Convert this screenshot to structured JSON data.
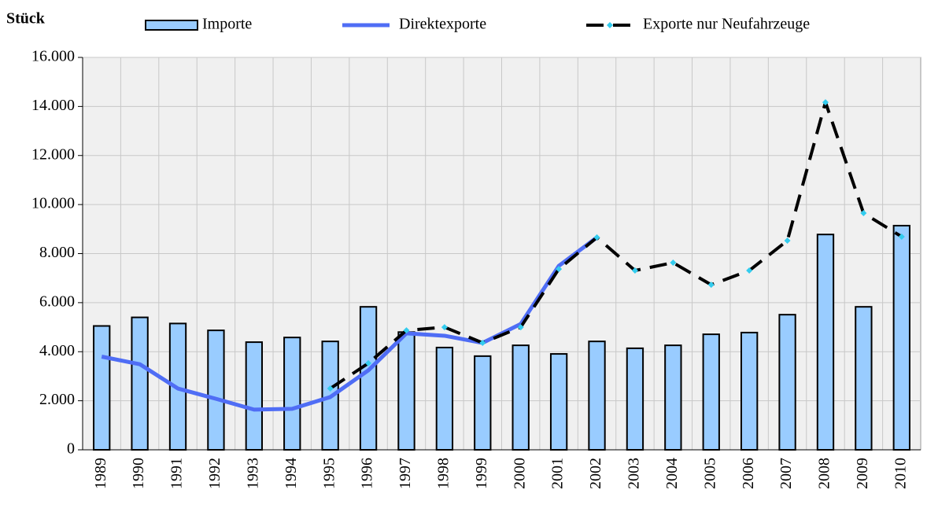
{
  "chart_data": {
    "type": "bar_line",
    "y_label": "Stück",
    "categories": [
      "1989",
      "1990",
      "1991",
      "1992",
      "1993",
      "1994",
      "1995",
      "1996",
      "1997",
      "1998",
      "1999",
      "2000",
      "2001",
      "2002",
      "2003",
      "2004",
      "2005",
      "2006",
      "2007",
      "2008",
      "2009",
      "2010"
    ],
    "series": [
      {
        "name": "Importe",
        "type": "bar",
        "color": "#99ccff",
        "values": [
          5050,
          5400,
          5150,
          4870,
          4390,
          4580,
          4420,
          5830,
          4800,
          4170,
          3820,
          4260,
          3910,
          4420,
          4140,
          4260,
          4710,
          4780,
          5510,
          8780,
          5830,
          9140
        ]
      },
      {
        "name": "Direktexporte",
        "type": "line",
        "color": "#4f6df5",
        "values": [
          3800,
          3490,
          2500,
          2080,
          1640,
          1670,
          2150,
          3240,
          4750,
          4650,
          4360,
          5130,
          7500,
          8660,
          null,
          null,
          null,
          null,
          null,
          null,
          null,
          null
        ]
      },
      {
        "name": "Exporte nur Neufahrzeuge",
        "type": "dashed",
        "color": "#000000",
        "marker_color": "#33ccee",
        "values": [
          null,
          null,
          null,
          null,
          null,
          null,
          2500,
          3530,
          4870,
          5000,
          4360,
          5000,
          7370,
          8660,
          7310,
          7630,
          6730,
          7310,
          8530,
          14170,
          9650,
          8690
        ]
      }
    ],
    "ylim": [
      0,
      16000
    ],
    "yticks": [
      0,
      {
        "value": 2000,
        "label": "2.000"
      },
      {
        "value": 4000,
        "label": "4.000"
      },
      {
        "value": 6000,
        "label": "6.000"
      },
      {
        "value": 8000,
        "label": "8.000"
      },
      {
        "value": 10000,
        "label": "10.000"
      },
      {
        "value": 12000,
        "label": "12.000"
      },
      {
        "value": 14000,
        "label": "14.000"
      },
      {
        "value": 16000,
        "label": "16.000"
      }
    ],
    "grid": true
  }
}
